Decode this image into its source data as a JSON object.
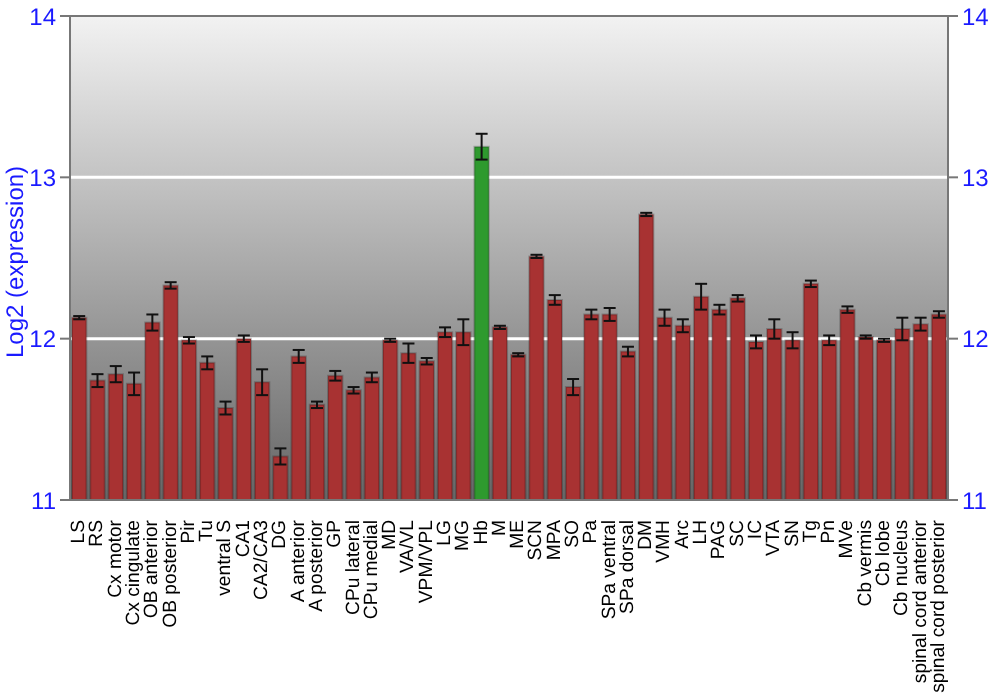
{
  "chart_data": {
    "type": "bar",
    "ylabel": "Log2 (expression)",
    "categories": [
      "LS",
      "RS",
      "Cx motor",
      "Cx cingulate",
      "OB anterior",
      "OB posterior",
      "Pir",
      "Tu",
      "ventral S",
      "CA1",
      "CA2/CA3",
      "DG",
      "A anterior",
      "A posterior",
      "GP",
      "CPu lateral",
      "CPu medial",
      "MD",
      "VA/VL",
      "VPM/VPL",
      "LG",
      "MG",
      "Hb",
      "M",
      "ME",
      "SCN",
      "MPA",
      "SO",
      "Pa",
      "SPa ventral",
      "SPa dorsal",
      "DM",
      "VMH",
      "Arc",
      "LH",
      "PAG",
      "SC",
      "IC",
      "VTA",
      "SN",
      "Tg",
      "Pn",
      "MVe",
      "Cb vermis",
      "Cb lobe",
      "Cb nucleus",
      "spinal cord anterior",
      "spinal cord posterior"
    ],
    "values": [
      12.13,
      11.74,
      11.78,
      11.72,
      12.1,
      12.33,
      11.99,
      11.85,
      11.57,
      12.0,
      11.73,
      11.27,
      11.89,
      11.59,
      11.77,
      11.68,
      11.76,
      11.99,
      11.91,
      11.86,
      12.04,
      12.04,
      13.19,
      12.07,
      11.9,
      12.51,
      12.24,
      11.7,
      12.15,
      12.15,
      11.92,
      12.77,
      12.13,
      12.08,
      12.26,
      12.18,
      12.25,
      11.98,
      12.06,
      11.99,
      12.34,
      11.99,
      12.18,
      12.01,
      11.99,
      12.06,
      12.09,
      12.15
    ],
    "errors": [
      0.01,
      0.04,
      0.05,
      0.07,
      0.05,
      0.02,
      0.02,
      0.04,
      0.04,
      0.02,
      0.08,
      0.05,
      0.04,
      0.02,
      0.03,
      0.02,
      0.03,
      0.01,
      0.06,
      0.02,
      0.03,
      0.08,
      0.08,
      0.01,
      0.01,
      0.01,
      0.03,
      0.05,
      0.03,
      0.04,
      0.03,
      0.01,
      0.05,
      0.04,
      0.08,
      0.03,
      0.02,
      0.04,
      0.06,
      0.05,
      0.02,
      0.03,
      0.02,
      0.01,
      0.01,
      0.07,
      0.04,
      0.02
    ],
    "colors": [
      "#a83232",
      "#a83232",
      "#a83232",
      "#a83232",
      "#a83232",
      "#a83232",
      "#a83232",
      "#a83232",
      "#a83232",
      "#a83232",
      "#a83232",
      "#a83232",
      "#a83232",
      "#a83232",
      "#a83232",
      "#a83232",
      "#a83232",
      "#a83232",
      "#a83232",
      "#a83232",
      "#a83232",
      "#a83232",
      "#2e9a2e",
      "#a83232",
      "#a83232",
      "#a83232",
      "#a83232",
      "#a83232",
      "#a83232",
      "#a83232",
      "#a83232",
      "#a83232",
      "#a83232",
      "#a83232",
      "#a83232",
      "#a83232",
      "#a83232",
      "#a83232",
      "#a83232",
      "#a83232",
      "#a83232",
      "#a83232",
      "#a83232",
      "#a83232",
      "#a83232",
      "#a83232",
      "#a83232",
      "#a83232"
    ],
    "ylim": [
      11,
      14
    ],
    "yticks": [
      11,
      12,
      13,
      14
    ],
    "y2lim": [
      11,
      14
    ],
    "y2ticks": [
      11,
      12,
      13,
      14
    ],
    "grid": "y"
  }
}
